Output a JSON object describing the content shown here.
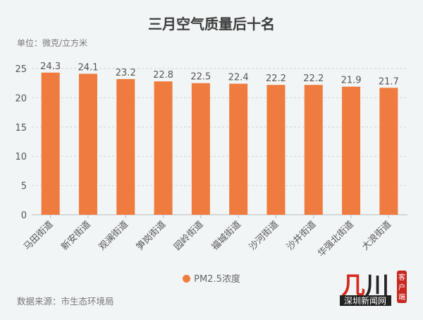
{
  "chart_data": {
    "type": "bar",
    "title": "三月空气质量后十名",
    "unit_label": "单位：微克/立方米",
    "categories": [
      "马田街道",
      "新安街道",
      "观澜街道",
      "笋岗街道",
      "园岭街道",
      "福城街道",
      "沙河街道",
      "沙井街道",
      "华强北街道",
      "大浪街道"
    ],
    "series": [
      {
        "name": "PM2.5浓度",
        "values": [
          24.3,
          24.1,
          23.2,
          22.8,
          22.5,
          22.4,
          22.2,
          22.2,
          21.9,
          21.7
        ]
      }
    ],
    "ylim": [
      0,
      25
    ],
    "yticks": [
      0,
      5,
      10,
      15,
      20,
      25
    ],
    "grid": true,
    "legend_position": "bottom",
    "bar_color": "#ef7b3e"
  },
  "source": "数据来源：市生态环境局",
  "logo": {
    "text": "圳",
    "subtitle": "深圳新闻网",
    "badge": "客户端"
  }
}
